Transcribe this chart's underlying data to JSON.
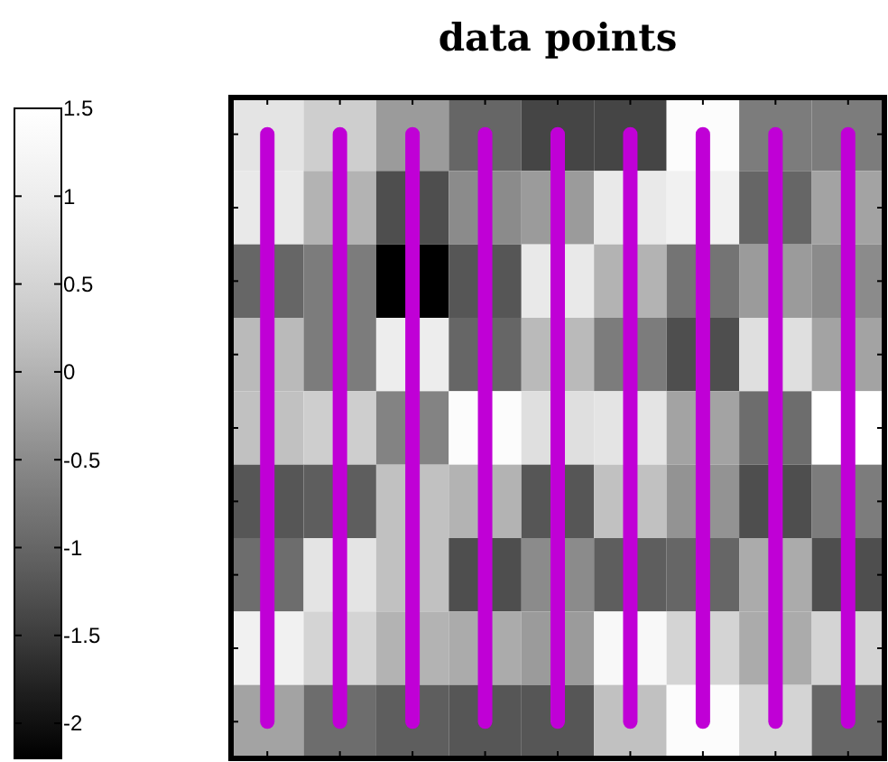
{
  "chart_data": {
    "type": "heatmap",
    "title": "data points",
    "categories": [
      null,
      null,
      null,
      null,
      null,
      null,
      null,
      null,
      null
    ],
    "y_categories": [
      null,
      null,
      null,
      null,
      null,
      null,
      null,
      null,
      null
    ],
    "cells": [
      [
        0.8,
        0.4,
        -0.3,
        -1.0,
        -1.4,
        -1.4,
        1.4,
        -0.7,
        -0.7
      ],
      [
        0.9,
        0.0,
        -1.3,
        -0.5,
        -0.3,
        0.9,
        1.1,
        -1.0,
        -0.2
      ],
      [
        -1.0,
        -0.7,
        -2.2,
        -1.2,
        0.9,
        0.0,
        -0.8,
        -0.3,
        -0.5
      ],
      [
        0.1,
        -0.7,
        1.0,
        -1.0,
        0.1,
        -0.7,
        -1.3,
        0.7,
        -0.2
      ],
      [
        0.2,
        0.4,
        -0.6,
        1.4,
        0.7,
        0.8,
        -0.2,
        -0.9,
        1.5
      ],
      [
        -1.2,
        -1.1,
        0.2,
        0.0,
        -1.2,
        0.2,
        -0.4,
        -1.3,
        -0.7
      ],
      [
        -0.9,
        0.8,
        0.2,
        -1.3,
        -0.5,
        -1.1,
        -1.0,
        -0.1,
        -1.3
      ],
      [
        1.1,
        0.5,
        0.0,
        -0.1,
        -0.3,
        1.3,
        0.5,
        -0.1,
        0.5
      ],
      [
        -0.2,
        -0.9,
        -1.1,
        -1.2,
        -1.2,
        0.2,
        1.4,
        0.5,
        -1.0
      ]
    ],
    "clim": [
      -2.2,
      1.5
    ],
    "cticks": [
      1.5,
      1,
      0.5,
      0,
      -0.5,
      -1,
      -1.5,
      -2
    ],
    "grid": "x"
  }
}
